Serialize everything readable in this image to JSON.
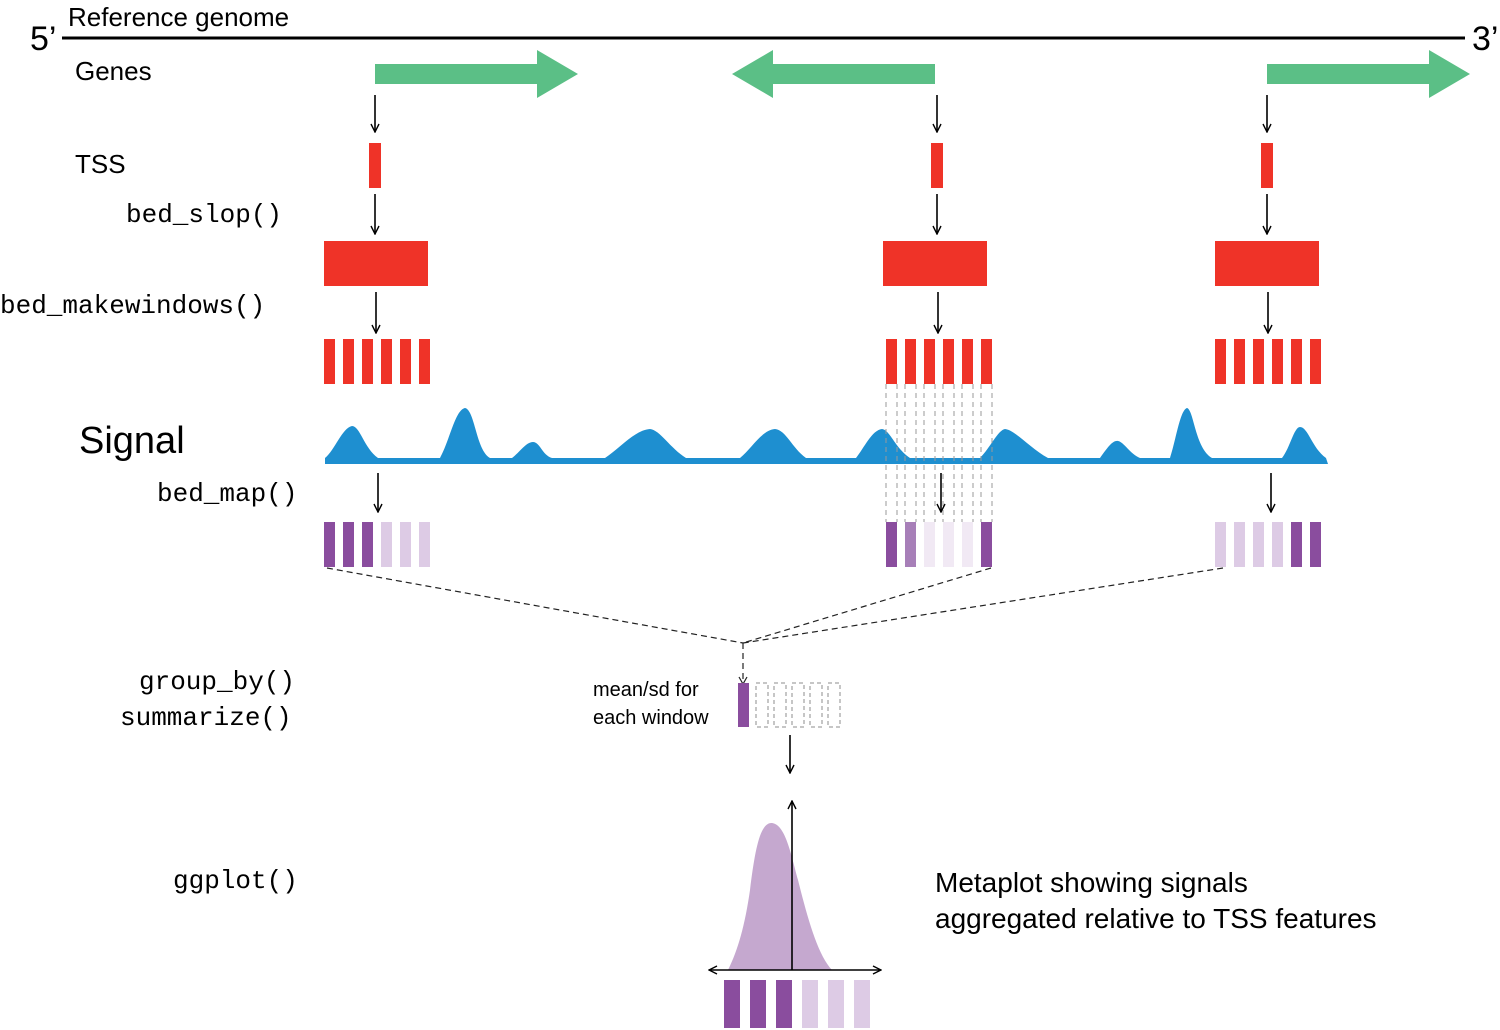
{
  "genome": {
    "title": "Reference genome",
    "five_prime": "5’",
    "three_prime": "3’"
  },
  "rows": {
    "genes": "Genes",
    "tss": "TSS",
    "slop": "bed_slop()",
    "makewindows": "bed_makewindows()",
    "signal": "Signal",
    "map": "bed_map()",
    "group_by": "group_by()",
    "summarize": "summarize()",
    "ggplot": "ggplot()"
  },
  "summary_label": [
    "mean/sd for",
    "each window"
  ],
  "metaplot_caption": [
    "Metaplot showing signals",
    "aggregated relative to TSS features"
  ],
  "genes": [
    {
      "strand": "+",
      "tss_window_pattern": [
        1,
        1,
        1,
        0,
        0,
        0
      ]
    },
    {
      "strand": "-",
      "tss_window_pattern": [
        1,
        0.5,
        0,
        0,
        0,
        1
      ]
    },
    {
      "strand": "+",
      "tss_window_pattern": [
        0,
        0,
        0,
        0,
        1,
        1
      ]
    }
  ],
  "colors": {
    "gene_arrow": "#5bbf86",
    "tss": "#ef3328",
    "signal": "#1e8fd0",
    "map_high": "#8a4d9e",
    "map_mid": "#a77fb8",
    "map_low": "#ddcbe5",
    "map_faint": "#f1e9f4",
    "metaplot": "#c5a8cf"
  }
}
